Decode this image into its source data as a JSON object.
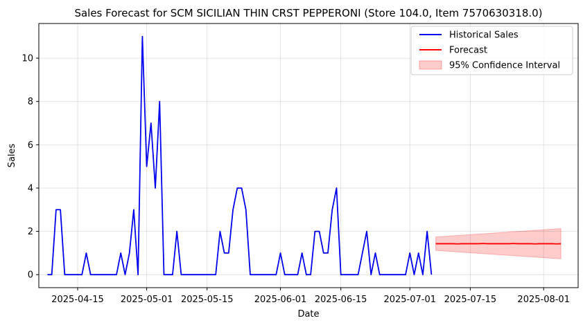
{
  "chart_data": {
    "type": "line",
    "title": "Sales Forecast for SCM SICILIAN THIN CRST PEPPERONI (Store 104.0, Item 7570630318.0)",
    "xlabel": "Date",
    "ylabel": "Sales",
    "x_axis_type": "date",
    "xlim": [
      "2025-04-06",
      "2025-08-09"
    ],
    "ylim": [
      -0.6,
      11.6
    ],
    "x_ticks": [
      {
        "date": "2025-04-15",
        "label": "2025-04-15"
      },
      {
        "date": "2025-05-01",
        "label": "2025-05-01"
      },
      {
        "date": "2025-05-15",
        "label": "2025-05-15"
      },
      {
        "date": "2025-06-01",
        "label": "2025-06-01"
      },
      {
        "date": "2025-06-15",
        "label": "2025-06-15"
      },
      {
        "date": "2025-07-01",
        "label": "2025-07-01"
      },
      {
        "date": "2025-07-15",
        "label": "2025-07-15"
      },
      {
        "date": "2025-08-01",
        "label": "2025-08-01"
      }
    ],
    "y_ticks": [
      0,
      2,
      4,
      6,
      8,
      10
    ],
    "grid": true,
    "legend_position": "top-right",
    "series": [
      {
        "name": "Historical Sales",
        "color": "#0000ee",
        "points": [
          [
            "2025-04-08",
            0
          ],
          [
            "2025-04-09",
            0
          ],
          [
            "2025-04-10",
            3
          ],
          [
            "2025-04-11",
            3
          ],
          [
            "2025-04-12",
            0
          ],
          [
            "2025-04-13",
            0
          ],
          [
            "2025-04-14",
            0
          ],
          [
            "2025-04-15",
            0
          ],
          [
            "2025-04-16",
            0
          ],
          [
            "2025-04-17",
            1
          ],
          [
            "2025-04-18",
            0
          ],
          [
            "2025-04-19",
            0
          ],
          [
            "2025-04-20",
            0
          ],
          [
            "2025-04-21",
            0
          ],
          [
            "2025-04-22",
            0
          ],
          [
            "2025-04-23",
            0
          ],
          [
            "2025-04-24",
            0
          ],
          [
            "2025-04-25",
            1
          ],
          [
            "2025-04-26",
            0
          ],
          [
            "2025-04-27",
            1
          ],
          [
            "2025-04-28",
            3
          ],
          [
            "2025-04-29",
            0
          ],
          [
            "2025-04-30",
            11
          ],
          [
            "2025-05-01",
            5
          ],
          [
            "2025-05-02",
            7
          ],
          [
            "2025-05-03",
            4
          ],
          [
            "2025-05-04",
            8
          ],
          [
            "2025-05-05",
            0
          ],
          [
            "2025-05-06",
            0
          ],
          [
            "2025-05-07",
            0
          ],
          [
            "2025-05-08",
            2
          ],
          [
            "2025-05-09",
            0
          ],
          [
            "2025-05-10",
            0
          ],
          [
            "2025-05-11",
            0
          ],
          [
            "2025-05-12",
            0
          ],
          [
            "2025-05-13",
            0
          ],
          [
            "2025-05-14",
            0
          ],
          [
            "2025-05-15",
            0
          ],
          [
            "2025-05-16",
            0
          ],
          [
            "2025-05-17",
            0
          ],
          [
            "2025-05-18",
            2
          ],
          [
            "2025-05-19",
            1
          ],
          [
            "2025-05-20",
            1
          ],
          [
            "2025-05-21",
            3
          ],
          [
            "2025-05-22",
            4
          ],
          [
            "2025-05-23",
            4
          ],
          [
            "2025-05-24",
            3
          ],
          [
            "2025-05-25",
            0
          ],
          [
            "2025-05-26",
            0
          ],
          [
            "2025-05-27",
            0
          ],
          [
            "2025-05-28",
            0
          ],
          [
            "2025-05-29",
            0
          ],
          [
            "2025-05-30",
            0
          ],
          [
            "2025-05-31",
            0
          ],
          [
            "2025-06-01",
            1
          ],
          [
            "2025-06-02",
            0
          ],
          [
            "2025-06-03",
            0
          ],
          [
            "2025-06-04",
            0
          ],
          [
            "2025-06-05",
            0
          ],
          [
            "2025-06-06",
            1
          ],
          [
            "2025-06-07",
            0
          ],
          [
            "2025-06-08",
            0
          ],
          [
            "2025-06-09",
            2
          ],
          [
            "2025-06-10",
            2
          ],
          [
            "2025-06-11",
            1
          ],
          [
            "2025-06-12",
            1
          ],
          [
            "2025-06-13",
            3
          ],
          [
            "2025-06-14",
            4
          ],
          [
            "2025-06-15",
            0
          ],
          [
            "2025-06-16",
            0
          ],
          [
            "2025-06-17",
            0
          ],
          [
            "2025-06-18",
            0
          ],
          [
            "2025-06-19",
            0
          ],
          [
            "2025-06-20",
            1
          ],
          [
            "2025-06-21",
            2
          ],
          [
            "2025-06-22",
            0
          ],
          [
            "2025-06-23",
            1
          ],
          [
            "2025-06-24",
            0
          ],
          [
            "2025-06-25",
            0
          ],
          [
            "2025-06-26",
            0
          ],
          [
            "2025-06-27",
            0
          ],
          [
            "2025-06-28",
            0
          ],
          [
            "2025-06-29",
            0
          ],
          [
            "2025-06-30",
            0
          ],
          [
            "2025-07-01",
            1
          ],
          [
            "2025-07-02",
            0
          ],
          [
            "2025-07-03",
            1
          ],
          [
            "2025-07-04",
            0
          ],
          [
            "2025-07-05",
            2
          ],
          [
            "2025-07-06",
            0
          ]
        ]
      },
      {
        "name": "Forecast",
        "color": "#ff0000",
        "points": [
          [
            "2025-07-07",
            1.43
          ],
          [
            "2025-07-08",
            1.43
          ],
          [
            "2025-07-09",
            1.43
          ],
          [
            "2025-07-10",
            1.43
          ],
          [
            "2025-07-11",
            1.43
          ],
          [
            "2025-07-12",
            1.42
          ],
          [
            "2025-07-13",
            1.43
          ],
          [
            "2025-07-14",
            1.43
          ],
          [
            "2025-07-15",
            1.43
          ],
          [
            "2025-07-16",
            1.43
          ],
          [
            "2025-07-17",
            1.43
          ],
          [
            "2025-07-18",
            1.44
          ],
          [
            "2025-07-19",
            1.43
          ],
          [
            "2025-07-20",
            1.43
          ],
          [
            "2025-07-21",
            1.43
          ],
          [
            "2025-07-22",
            1.43
          ],
          [
            "2025-07-23",
            1.43
          ],
          [
            "2025-07-24",
            1.43
          ],
          [
            "2025-07-25",
            1.44
          ],
          [
            "2025-07-26",
            1.43
          ],
          [
            "2025-07-27",
            1.43
          ],
          [
            "2025-07-28",
            1.43
          ],
          [
            "2025-07-29",
            1.43
          ],
          [
            "2025-07-30",
            1.42
          ],
          [
            "2025-07-31",
            1.43
          ],
          [
            "2025-08-01",
            1.43
          ],
          [
            "2025-08-02",
            1.43
          ],
          [
            "2025-08-03",
            1.43
          ],
          [
            "2025-08-04",
            1.42
          ],
          [
            "2025-08-05",
            1.43
          ]
        ]
      }
    ],
    "confidence_interval": {
      "name": "95% Confidence Interval",
      "color": "#ff0000",
      "opacity": 0.2,
      "x_start": "2025-07-07",
      "x_end": "2025-08-05",
      "lower": [
        1.12,
        0.73
      ],
      "upper": [
        1.74,
        2.13
      ]
    }
  }
}
